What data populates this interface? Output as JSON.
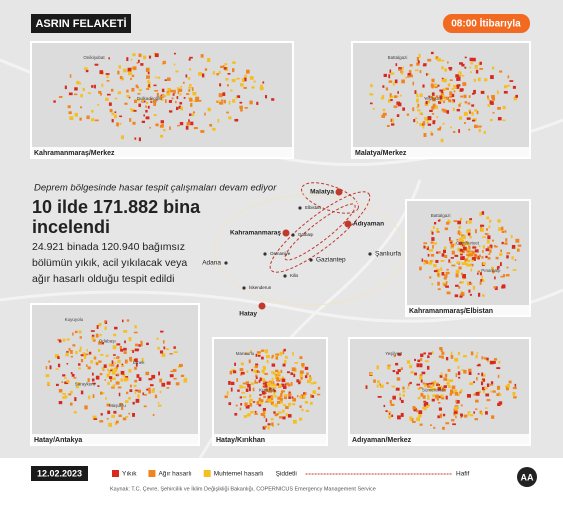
{
  "header": {
    "title": "ASRIN FELAKETİ",
    "time": "08:00 İtibarıyla"
  },
  "panels": [
    {
      "label": "Kahramanmaraş/Merkez",
      "places": [
        "Onikişubat",
        "Dulkadiroğlu"
      ]
    },
    {
      "label": "Malatya/Merkez",
      "places": [
        "Battalgazi",
        "Yeşilyurt"
      ]
    },
    {
      "label": "Kahramanmaraş/Elbistan",
      "places": [
        "Battalgazi",
        "Cumhuriyet",
        "Pınarbaşı"
      ]
    },
    {
      "label": "Hatay/Antakya",
      "places": [
        "Kuyuyolu",
        "Odabaşı",
        "Emek",
        "Saraykent",
        "Maşuklu"
      ]
    },
    {
      "label": "Hatay/Kırıkhan",
      "places": [
        "Mansurlu",
        "Kurtuluş"
      ]
    },
    {
      "label": "Adıyaman/Merkez",
      "places": [
        "Yeşilyurt",
        "Sümerevler"
      ]
    }
  ],
  "headline": {
    "subtitle": "Deprem bölgesinde hasar tespit çalışmaları devam ediyor",
    "title_lines": [
      "10 ilde 171.882 bina",
      "incelendi"
    ],
    "body_lines": [
      "24.921 binada 120.940 bağımsız",
      "bölümün yıkık, acil yıkılacak veya",
      "ağır hasarlı olduğu tespit edildi"
    ]
  },
  "cities": [
    "Malatya",
    "Kahramanmaraş",
    "Adıyaman",
    "Adana",
    "Gaziantep",
    "Şanlıurfa",
    "Hatay",
    "Osmaniye",
    "Kilis",
    "İskenderun",
    "Elbistan",
    "Gölbaşı"
  ],
  "legend": {
    "items": [
      {
        "label": "Yıkık",
        "color": "#d62a1e"
      },
      {
        "label": "Ağır hasarlı",
        "color": "#f0841f"
      },
      {
        "label": "Muhtemel hasarlı",
        "color": "#f5bf22"
      }
    ],
    "strong": "Şiddetli",
    "weak": "Hafif"
  },
  "footer": {
    "date": "12.02.2023",
    "source": "Kaynak: T.C. Çevre, Şehircilik ve İklim Değişikliği Bakanlığı, COPERNICUS Emergency Management Service",
    "logo": "AA"
  }
}
